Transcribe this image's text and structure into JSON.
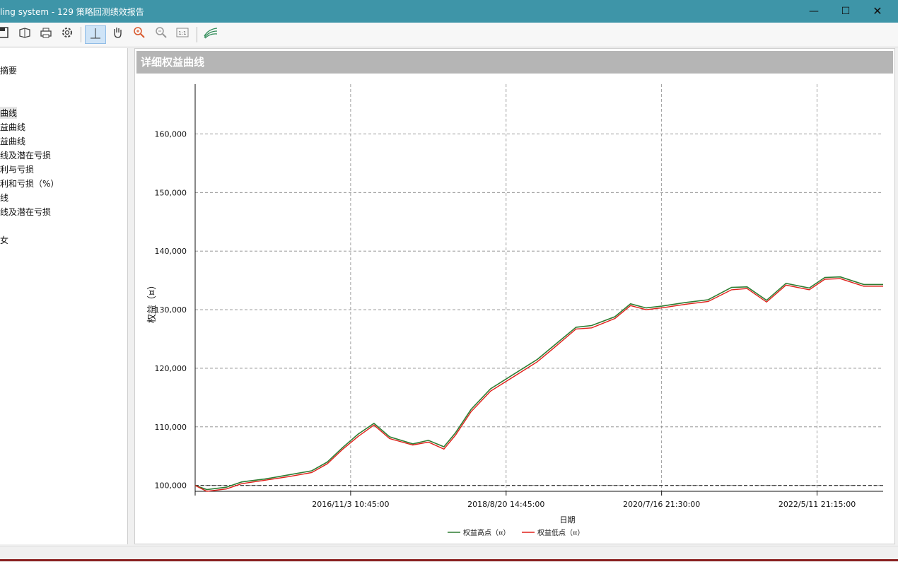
{
  "window": {
    "title": "ling system - 129 策略回测绩效报告",
    "minimize_glyph": "—",
    "maximize_glyph": "☐",
    "close_glyph": "✕"
  },
  "toolbar": {
    "icons": [
      "save-icon",
      "open-icon",
      "print-icon",
      "settings-icon",
      "crosshair-icon",
      "pan-hand-icon",
      "zoom-in-icon",
      "zoom-out-icon",
      "actual-size-icon",
      "chart-style-icon"
    ]
  },
  "tree": {
    "items": [
      {
        "label": "摘要"
      },
      {
        "label": "曲线",
        "selected": true
      },
      {
        "label": "益曲线"
      },
      {
        "label": "益曲线"
      },
      {
        "label": "线及潜在亏损"
      },
      {
        "label": "利与亏损"
      },
      {
        "label": "利和亏损（%）"
      },
      {
        "label": "线"
      },
      {
        "label": "线及潜在亏损"
      },
      {
        "label": "女"
      }
    ]
  },
  "panel": {
    "title": "详细权益曲线"
  },
  "chart_data": {
    "type": "line",
    "title": "",
    "xlabel": "日期",
    "ylabel": "权益（¤）",
    "ylim": [
      99000,
      168500
    ],
    "y_ticks": [
      {
        "value": 100000,
        "label": "100,000"
      },
      {
        "value": 110000,
        "label": "110,000"
      },
      {
        "value": 120000,
        "label": "120,000"
      },
      {
        "value": 130000,
        "label": "130,000"
      },
      {
        "value": 140000,
        "label": "140,000"
      },
      {
        "value": 150000,
        "label": "150,000"
      },
      {
        "value": 160000,
        "label": "160,000"
      }
    ],
    "x_ticks": [
      {
        "index": 2,
        "label": "2016/11/3 10:45:00"
      },
      {
        "index": 4,
        "label": "2018/8/20 14:45:00"
      },
      {
        "index": 6,
        "label": "2020/7/16 21:30:00"
      },
      {
        "index": 8,
        "label": "2022/5/11 21:15:00"
      }
    ],
    "x_range": [
      0,
      8.85
    ],
    "grid": true,
    "baseline": 100000,
    "legend_position": "bottom",
    "series": [
      {
        "name": "权益高点（¤）",
        "color": "#2e7d32",
        "values": [
          [
            0,
            100000
          ],
          [
            0.15,
            99300
          ],
          [
            0.4,
            99700
          ],
          [
            0.6,
            100600
          ],
          [
            0.9,
            101100
          ],
          [
            1.2,
            101800
          ],
          [
            1.5,
            102500
          ],
          [
            1.7,
            104000
          ],
          [
            1.9,
            106500
          ],
          [
            2.1,
            108800
          ],
          [
            2.3,
            110600
          ],
          [
            2.5,
            108300
          ],
          [
            2.8,
            107100
          ],
          [
            3.0,
            107700
          ],
          [
            3.2,
            106600
          ],
          [
            3.35,
            109000
          ],
          [
            3.55,
            113000
          ],
          [
            3.8,
            116500
          ],
          [
            4.1,
            119000
          ],
          [
            4.4,
            121500
          ],
          [
            4.6,
            123700
          ],
          [
            4.9,
            127000
          ],
          [
            5.1,
            127300
          ],
          [
            5.4,
            128800
          ],
          [
            5.6,
            131000
          ],
          [
            5.8,
            130300
          ],
          [
            6.0,
            130600
          ],
          [
            6.3,
            131200
          ],
          [
            6.6,
            131700
          ],
          [
            6.9,
            133800
          ],
          [
            7.1,
            133900
          ],
          [
            7.35,
            131600
          ],
          [
            7.6,
            134500
          ],
          [
            7.9,
            133700
          ],
          [
            8.1,
            135500
          ],
          [
            8.3,
            135600
          ],
          [
            8.6,
            134300
          ],
          [
            8.85,
            134300
          ]
        ]
      },
      {
        "name": "权益低点（¤）",
        "color": "#e0201a",
        "values": [
          [
            0,
            100000
          ],
          [
            0.15,
            99000
          ],
          [
            0.4,
            99400
          ],
          [
            0.6,
            100300
          ],
          [
            0.9,
            100900
          ],
          [
            1.2,
            101500
          ],
          [
            1.5,
            102200
          ],
          [
            1.7,
            103700
          ],
          [
            1.9,
            106200
          ],
          [
            2.1,
            108400
          ],
          [
            2.3,
            110300
          ],
          [
            2.5,
            108000
          ],
          [
            2.8,
            106900
          ],
          [
            3.0,
            107400
          ],
          [
            3.2,
            106200
          ],
          [
            3.35,
            108600
          ],
          [
            3.55,
            112600
          ],
          [
            3.8,
            116100
          ],
          [
            4.1,
            118600
          ],
          [
            4.4,
            121100
          ],
          [
            4.6,
            123300
          ],
          [
            4.9,
            126700
          ],
          [
            5.1,
            126900
          ],
          [
            5.4,
            128500
          ],
          [
            5.6,
            130700
          ],
          [
            5.8,
            130000
          ],
          [
            6.0,
            130300
          ],
          [
            6.3,
            130900
          ],
          [
            6.6,
            131400
          ],
          [
            6.9,
            133400
          ],
          [
            7.1,
            133600
          ],
          [
            7.35,
            131300
          ],
          [
            7.6,
            134200
          ],
          [
            7.9,
            133400
          ],
          [
            8.1,
            135200
          ],
          [
            8.3,
            135300
          ],
          [
            8.6,
            134000
          ],
          [
            8.85,
            134000
          ]
        ]
      }
    ]
  },
  "x_domain_note": ""
}
